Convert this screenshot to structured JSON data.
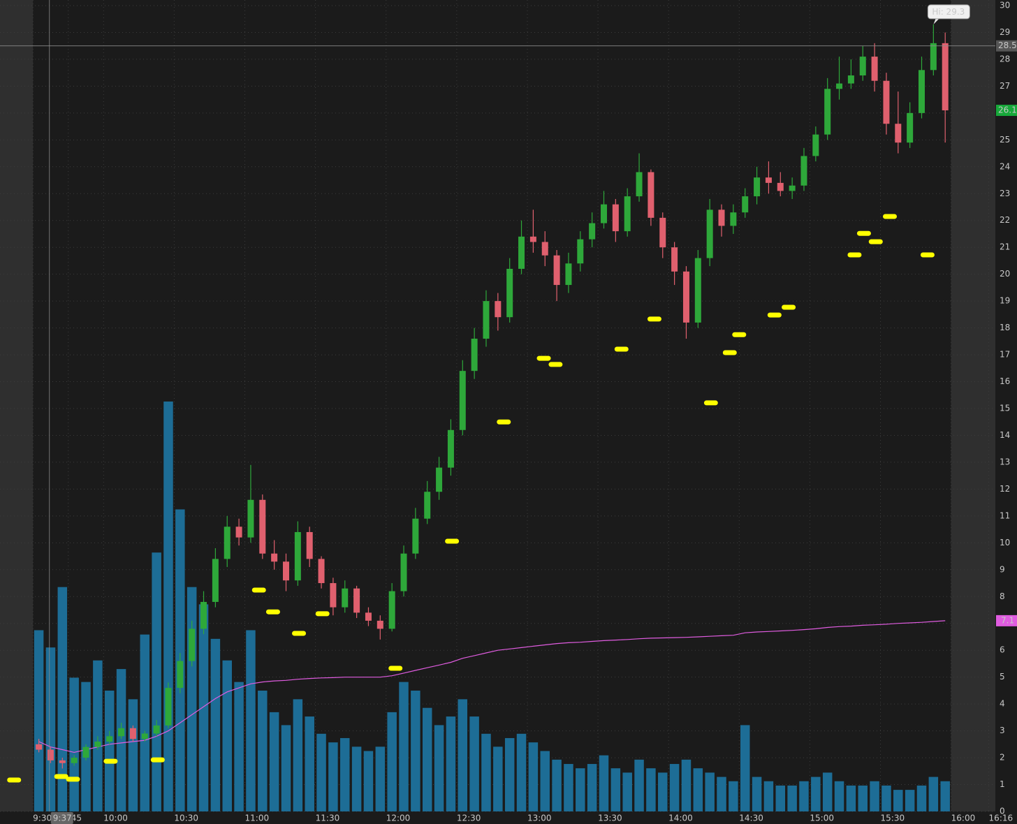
{
  "chart_data": {
    "type": "candlestick",
    "x": [
      "9:30",
      "9:35",
      "9:40",
      "9:45",
      "9:50",
      "9:55",
      "10:00",
      "10:05",
      "10:10",
      "10:15",
      "10:20",
      "10:25",
      "10:30",
      "10:35",
      "10:40",
      "10:45",
      "10:50",
      "10:55",
      "11:00",
      "11:05",
      "11:10",
      "11:15",
      "11:20",
      "11:25",
      "11:30",
      "11:35",
      "11:40",
      "11:45",
      "11:50",
      "11:55",
      "12:00",
      "12:05",
      "12:10",
      "12:15",
      "12:20",
      "12:25",
      "12:30",
      "12:35",
      "12:40",
      "12:45",
      "12:50",
      "12:55",
      "13:00",
      "13:05",
      "13:10",
      "13:15",
      "13:20",
      "13:25",
      "13:30",
      "13:35",
      "13:40",
      "13:45",
      "13:50",
      "13:55",
      "14:00",
      "14:05",
      "14:10",
      "14:15",
      "14:20",
      "14:25",
      "14:30",
      "14:35",
      "14:40",
      "14:45",
      "14:50",
      "14:55",
      "15:00",
      "15:05",
      "15:10",
      "15:15",
      "15:20",
      "15:25",
      "15:30",
      "15:35",
      "15:40",
      "15:45",
      "15:50",
      "15:55"
    ],
    "open": [
      2.5,
      2.3,
      1.9,
      1.8,
      2.0,
      2.4,
      2.6,
      2.8,
      3.1,
      2.7,
      2.9,
      3.2,
      4.6,
      5.6,
      6.8,
      7.8,
      9.4,
      10.6,
      10.2,
      11.6,
      9.6,
      9.3,
      8.6,
      10.4,
      9.4,
      8.5,
      7.6,
      8.3,
      7.4,
      7.1,
      6.8,
      8.2,
      9.6,
      10.9,
      11.9,
      12.8,
      14.2,
      16.4,
      17.6,
      19.0,
      18.4,
      20.2,
      21.4,
      21.2,
      20.7,
      19.6,
      20.4,
      21.3,
      21.9,
      22.6,
      21.6,
      22.9,
      23.8,
      22.1,
      21.0,
      20.1,
      18.2,
      20.6,
      22.4,
      21.8,
      22.3,
      22.9,
      23.6,
      23.4,
      23.1,
      23.3,
      24.4,
      25.2,
      26.9,
      27.1,
      27.4,
      28.1,
      27.2,
      25.6,
      24.9,
      26.0,
      27.6,
      28.6
    ],
    "high": [
      2.7,
      2.4,
      2.0,
      2.1,
      2.5,
      2.8,
      3.0,
      3.3,
      3.2,
      3.0,
      3.4,
      4.8,
      5.9,
      7.1,
      8.2,
      9.8,
      11.0,
      10.9,
      12.9,
      11.8,
      10.1,
      9.6,
      10.8,
      10.6,
      9.5,
      8.7,
      8.6,
      8.4,
      7.6,
      7.3,
      8.5,
      9.9,
      11.3,
      12.3,
      13.2,
      14.6,
      16.8,
      18.0,
      19.4,
      19.3,
      20.6,
      22.0,
      22.4,
      21.6,
      20.9,
      20.8,
      21.6,
      22.3,
      23.1,
      22.8,
      23.2,
      24.5,
      23.9,
      22.3,
      21.2,
      20.3,
      20.9,
      22.8,
      22.6,
      22.6,
      23.2,
      24.0,
      24.2,
      23.8,
      23.6,
      24.7,
      25.5,
      27.3,
      28.1,
      28.0,
      28.5,
      28.6,
      27.5,
      26.8,
      26.4,
      28.1,
      29.3,
      29.0
    ],
    "low": [
      2.2,
      1.8,
      1.6,
      1.7,
      1.9,
      2.3,
      2.5,
      2.7,
      2.6,
      2.6,
      2.8,
      3.1,
      4.4,
      5.4,
      6.6,
      7.6,
      9.1,
      9.9,
      10.0,
      9.4,
      9.0,
      8.2,
      8.4,
      9.1,
      8.3,
      7.3,
      7.4,
      7.2,
      6.9,
      6.4,
      6.7,
      8.0,
      9.4,
      10.7,
      11.6,
      12.5,
      14.0,
      16.1,
      17.3,
      17.9,
      18.2,
      20.0,
      20.8,
      20.3,
      19.0,
      19.3,
      20.1,
      21.0,
      21.7,
      21.2,
      21.4,
      22.7,
      21.8,
      20.6,
      19.6,
      17.6,
      18.0,
      20.3,
      21.4,
      21.5,
      22.1,
      22.6,
      23.0,
      22.9,
      22.8,
      23.1,
      24.2,
      25.0,
      26.5,
      26.9,
      27.2,
      26.8,
      25.2,
      24.5,
      24.7,
      25.8,
      27.4,
      24.9
    ],
    "close": [
      2.3,
      1.9,
      1.8,
      2.0,
      2.4,
      2.6,
      2.8,
      3.1,
      2.7,
      2.9,
      3.2,
      4.6,
      5.6,
      6.8,
      7.8,
      9.4,
      10.6,
      10.2,
      11.6,
      9.6,
      9.3,
      8.6,
      10.4,
      9.4,
      8.5,
      7.6,
      8.3,
      7.4,
      7.1,
      6.8,
      8.2,
      9.6,
      10.9,
      11.9,
      12.8,
      14.2,
      16.4,
      17.6,
      19.0,
      18.4,
      20.2,
      21.4,
      21.2,
      20.7,
      19.6,
      20.4,
      21.3,
      21.9,
      22.6,
      21.6,
      22.9,
      23.8,
      22.1,
      21.0,
      20.1,
      18.2,
      20.6,
      22.4,
      21.8,
      22.3,
      22.9,
      23.6,
      23.4,
      23.1,
      23.3,
      24.4,
      25.2,
      26.9,
      27.1,
      27.4,
      28.1,
      27.2,
      25.6,
      24.9,
      26.0,
      27.6,
      28.6,
      26.1
    ],
    "volume": [
      420,
      380,
      520,
      310,
      300,
      350,
      280,
      330,
      260,
      410,
      600,
      950,
      700,
      520,
      480,
      400,
      350,
      300,
      420,
      280,
      230,
      200,
      260,
      220,
      180,
      160,
      170,
      150,
      140,
      150,
      230,
      300,
      280,
      240,
      200,
      220,
      260,
      220,
      180,
      150,
      170,
      180,
      160,
      140,
      120,
      110,
      100,
      110,
      130,
      100,
      90,
      120,
      100,
      90,
      110,
      120,
      100,
      90,
      80,
      70,
      200,
      80,
      70,
      60,
      60,
      70,
      80,
      90,
      70,
      60,
      60,
      70,
      60,
      50,
      50,
      60,
      80,
      70
    ],
    "vwap": [
      2.6,
      2.4,
      2.3,
      2.2,
      2.3,
      2.4,
      2.5,
      2.55,
      2.6,
      2.65,
      2.8,
      3.0,
      3.3,
      3.6,
      3.9,
      4.2,
      4.45,
      4.6,
      4.75,
      4.82,
      4.86,
      4.88,
      4.92,
      4.95,
      4.97,
      4.98,
      5.0,
      5.0,
      5.0,
      5.0,
      5.05,
      5.15,
      5.25,
      5.35,
      5.45,
      5.55,
      5.7,
      5.8,
      5.9,
      6.0,
      6.05,
      6.1,
      6.15,
      6.2,
      6.25,
      6.28,
      6.3,
      6.33,
      6.36,
      6.38,
      6.4,
      6.43,
      6.45,
      6.46,
      6.47,
      6.48,
      6.5,
      6.52,
      6.54,
      6.56,
      6.65,
      6.68,
      6.7,
      6.72,
      6.74,
      6.77,
      6.8,
      6.85,
      6.88,
      6.9,
      6.93,
      6.95,
      6.97,
      7.0,
      7.02,
      7.04,
      7.07,
      7.1
    ],
    "signals": {
      "x": [
        "9:22",
        "9:42",
        "9:47",
        "10:03",
        "10:23",
        "11:06",
        "11:12",
        "11:23",
        "11:33",
        "12:04",
        "12:28",
        "12:50",
        "13:07",
        "13:12",
        "13:40",
        "13:54",
        "14:18",
        "14:26",
        "14:30",
        "14:45",
        "14:51",
        "15:19",
        "15:23",
        "15:28",
        "15:34",
        "15:50"
      ],
      "values": [
        1.17,
        1.3,
        1.2,
        1.87,
        1.92,
        8.24,
        7.43,
        6.63,
        7.36,
        5.33,
        10.06,
        14.5,
        16.87,
        16.64,
        17.21,
        18.33,
        15.21,
        17.08,
        17.75,
        18.48,
        18.77,
        20.72,
        21.52,
        21.21,
        22.15,
        20.72
      ]
    },
    "xlim": [
      "9:16",
      "16:28"
    ],
    "xticks": [
      "9:30",
      {
        "value": "9:45",
        "label": ":45"
      },
      "10:00",
      "10:30",
      "11:00",
      "11:30",
      "12:00",
      "12:30",
      "13:00",
      "13:30",
      "14:00",
      "14:30",
      "15:00",
      "15:30",
      "16:00",
      "16:16"
    ],
    "ylim": [
      0,
      30
    ],
    "yticks": [
      0,
      1,
      2,
      3,
      4,
      5,
      6,
      7,
      8,
      9,
      10,
      11,
      12,
      13,
      14,
      15,
      16,
      17,
      18,
      19,
      20,
      21,
      22,
      23,
      24,
      25,
      26,
      27,
      28,
      29,
      30
    ],
    "session": [
      "9:30",
      "16:00"
    ],
    "crosshair": {
      "x": "9:37",
      "y": 28.5
    },
    "annotation": {
      "text": "Hi: 29.3",
      "x": "15:50",
      "y": 29.3
    },
    "grid": true,
    "up_color": "#2ea83a",
    "down_color": "#e0606e",
    "volume_color": "#1d6d96",
    "vwap_color": "#e05ce0",
    "signal_color": "#ffff00",
    "last_color": "#17a83a"
  }
}
